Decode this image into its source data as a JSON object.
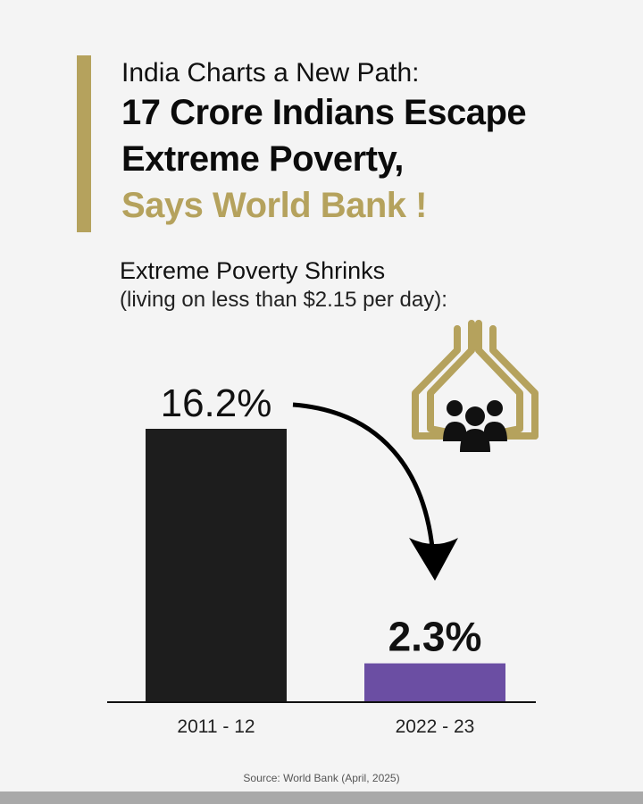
{
  "header": {
    "kicker": "India Charts a New Path:",
    "headline_line1": "17 Crore Indians Escape",
    "headline_line2": "Extreme Poverty,",
    "headline_accent": "Says World Bank !"
  },
  "subhead": {
    "title": "Extreme Poverty Shrinks",
    "note": "(living on less than $2.15 per day):"
  },
  "chart_data": {
    "type": "bar",
    "categories": [
      "2011 - 12",
      "2022 - 23"
    ],
    "values": [
      16.2,
      2.3
    ],
    "value_labels": [
      "16.2%",
      "2.3%"
    ],
    "colors": [
      "#1d1d1d",
      "#6b4ea3"
    ],
    "ylim": [
      0,
      18
    ],
    "grid": false
  },
  "icons": {
    "illustration": "hands-protecting-people-icon",
    "arrow": "curved-down-arrow-icon"
  },
  "colors": {
    "accent": "#b5a25d",
    "background": "#f4f4f4"
  },
  "footer": {
    "source": "Source: World Bank (April, 2025)"
  }
}
